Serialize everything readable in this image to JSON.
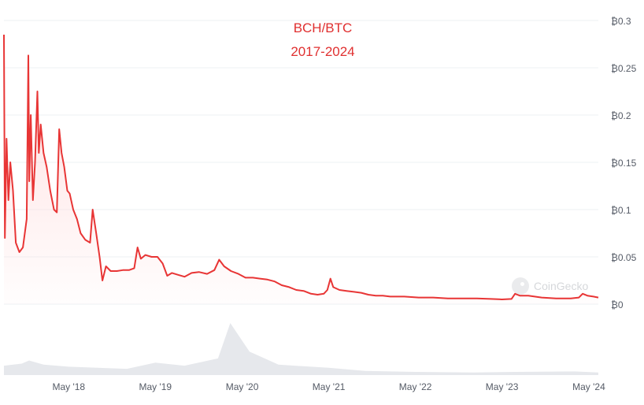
{
  "chart_data": {
    "type": "area",
    "title": "BCH/BTC",
    "subtitle": "2017-2024",
    "watermark": "CoinGecko",
    "colors": {
      "line": "#e83535",
      "fill": "#ffd9d9",
      "volume": "#e6e8ec",
      "grid": "#eef0f3",
      "axis_text": "#555b66"
    },
    "grid": true,
    "y_axis": {
      "position": "right",
      "ylim": [
        0,
        0.3
      ],
      "ticks": [
        0,
        0.05,
        0.1,
        0.15,
        0.2,
        0.25,
        0.3
      ],
      "tick_labels": [
        "₿0",
        "₿0.05",
        "₿0.1",
        "₿0.15",
        "₿0.2",
        "₿0.25",
        "₿0.3"
      ]
    },
    "x_axis": {
      "xlim": [
        "2017-08-01",
        "2024-06-10"
      ],
      "ticks": [
        "2018-05-01",
        "2019-05-01",
        "2020-05-01",
        "2021-05-01",
        "2022-05-01",
        "2023-05-01",
        "2024-05-01"
      ],
      "tick_labels": [
        "May '18",
        "May '19",
        "May '20",
        "May '21",
        "May '22",
        "May '23",
        "May '24"
      ]
    },
    "series": [
      {
        "points": [
          [
            "2017-08-01",
            0.285
          ],
          [
            "2017-08-05",
            0.07
          ],
          [
            "2017-08-12",
            0.175
          ],
          [
            "2017-08-20",
            0.11
          ],
          [
            "2017-08-28",
            0.15
          ],
          [
            "2017-09-08",
            0.12
          ],
          [
            "2017-09-20",
            0.065
          ],
          [
            "2017-10-05",
            0.055
          ],
          [
            "2017-10-20",
            0.06
          ],
          [
            "2017-11-05",
            0.09
          ],
          [
            "2017-11-12",
            0.263
          ],
          [
            "2017-11-16",
            0.13
          ],
          [
            "2017-11-22",
            0.2
          ],
          [
            "2017-12-01",
            0.11
          ],
          [
            "2017-12-10",
            0.15
          ],
          [
            "2017-12-20",
            0.225
          ],
          [
            "2017-12-26",
            0.16
          ],
          [
            "2018-01-03",
            0.19
          ],
          [
            "2018-01-15",
            0.16
          ],
          [
            "2018-01-28",
            0.145
          ],
          [
            "2018-02-12",
            0.12
          ],
          [
            "2018-02-28",
            0.1
          ],
          [
            "2018-03-12",
            0.097
          ],
          [
            "2018-03-22",
            0.185
          ],
          [
            "2018-04-01",
            0.16
          ],
          [
            "2018-04-12",
            0.145
          ],
          [
            "2018-04-25",
            0.12
          ],
          [
            "2018-05-05",
            0.117
          ],
          [
            "2018-05-20",
            0.1
          ],
          [
            "2018-06-05",
            0.09
          ],
          [
            "2018-06-20",
            0.075
          ],
          [
            "2018-07-10",
            0.068
          ],
          [
            "2018-07-30",
            0.065
          ],
          [
            "2018-08-10",
            0.1
          ],
          [
            "2018-08-25",
            0.075
          ],
          [
            "2018-09-08",
            0.05
          ],
          [
            "2018-09-20",
            0.025
          ],
          [
            "2018-10-05",
            0.04
          ],
          [
            "2018-10-25",
            0.035
          ],
          [
            "2018-11-20",
            0.035
          ],
          [
            "2018-12-15",
            0.036
          ],
          [
            "2019-01-10",
            0.036
          ],
          [
            "2019-02-01",
            0.038
          ],
          [
            "2019-02-15",
            0.06
          ],
          [
            "2019-03-01",
            0.048
          ],
          [
            "2019-03-20",
            0.052
          ],
          [
            "2019-04-15",
            0.05
          ],
          [
            "2019-05-10",
            0.05
          ],
          [
            "2019-06-01",
            0.043
          ],
          [
            "2019-06-20",
            0.03
          ],
          [
            "2019-07-10",
            0.033
          ],
          [
            "2019-08-05",
            0.031
          ],
          [
            "2019-09-01",
            0.029
          ],
          [
            "2019-10-01",
            0.033
          ],
          [
            "2019-11-01",
            0.034
          ],
          [
            "2019-12-05",
            0.032
          ],
          [
            "2020-01-05",
            0.036
          ],
          [
            "2020-01-25",
            0.047
          ],
          [
            "2020-02-15",
            0.04
          ],
          [
            "2020-03-15",
            0.035
          ],
          [
            "2020-04-15",
            0.032
          ],
          [
            "2020-05-15",
            0.028
          ],
          [
            "2020-06-15",
            0.028
          ],
          [
            "2020-07-15",
            0.027
          ],
          [
            "2020-08-15",
            0.026
          ],
          [
            "2020-09-15",
            0.024
          ],
          [
            "2020-10-15",
            0.02
          ],
          [
            "2020-11-15",
            0.018
          ],
          [
            "2020-12-15",
            0.015
          ],
          [
            "2021-01-15",
            0.014
          ],
          [
            "2021-02-15",
            0.011
          ],
          [
            "2021-03-15",
            0.01
          ],
          [
            "2021-04-10",
            0.011
          ],
          [
            "2021-04-25",
            0.015
          ],
          [
            "2021-05-08",
            0.027
          ],
          [
            "2021-05-20",
            0.018
          ],
          [
            "2021-06-15",
            0.015
          ],
          [
            "2021-07-15",
            0.014
          ],
          [
            "2021-08-15",
            0.013
          ],
          [
            "2021-09-15",
            0.012
          ],
          [
            "2021-10-15",
            0.01
          ],
          [
            "2021-11-15",
            0.009
          ],
          [
            "2021-12-15",
            0.009
          ],
          [
            "2022-01-15",
            0.008
          ],
          [
            "2022-03-15",
            0.008
          ],
          [
            "2022-05-15",
            0.007
          ],
          [
            "2022-07-15",
            0.007
          ],
          [
            "2022-09-15",
            0.006
          ],
          [
            "2022-11-15",
            0.006
          ],
          [
            "2023-01-15",
            0.006
          ],
          [
            "2023-03-15",
            0.0055
          ],
          [
            "2023-05-01",
            0.005
          ],
          [
            "2023-06-10",
            0.0055
          ],
          [
            "2023-06-25",
            0.011
          ],
          [
            "2023-07-15",
            0.009
          ],
          [
            "2023-08-20",
            0.009
          ],
          [
            "2023-10-15",
            0.007
          ],
          [
            "2023-12-15",
            0.006
          ],
          [
            "2024-02-15",
            0.006
          ],
          [
            "2024-03-20",
            0.007
          ],
          [
            "2024-04-05",
            0.011
          ],
          [
            "2024-04-25",
            0.009
          ],
          [
            "2024-05-20",
            0.008
          ],
          [
            "2024-06-10",
            0.007
          ]
        ]
      }
    ],
    "volume": {
      "ylim": [
        0,
        1
      ],
      "points": [
        [
          "2017-08-01",
          0.18
        ],
        [
          "2017-10-15",
          0.22
        ],
        [
          "2017-11-15",
          0.28
        ],
        [
          "2018-01-15",
          0.2
        ],
        [
          "2018-05-01",
          0.16
        ],
        [
          "2018-09-01",
          0.14
        ],
        [
          "2019-01-01",
          0.12
        ],
        [
          "2019-05-01",
          0.24
        ],
        [
          "2019-09-01",
          0.18
        ],
        [
          "2020-01-20",
          0.32
        ],
        [
          "2020-03-12",
          1.0
        ],
        [
          "2020-06-01",
          0.45
        ],
        [
          "2020-10-01",
          0.2
        ],
        [
          "2021-05-01",
          0.14
        ],
        [
          "2021-10-01",
          0.08
        ],
        [
          "2022-05-01",
          0.06
        ],
        [
          "2023-01-01",
          0.05
        ],
        [
          "2023-07-01",
          0.06
        ],
        [
          "2024-03-01",
          0.07
        ],
        [
          "2024-06-10",
          0.05
        ]
      ]
    }
  }
}
